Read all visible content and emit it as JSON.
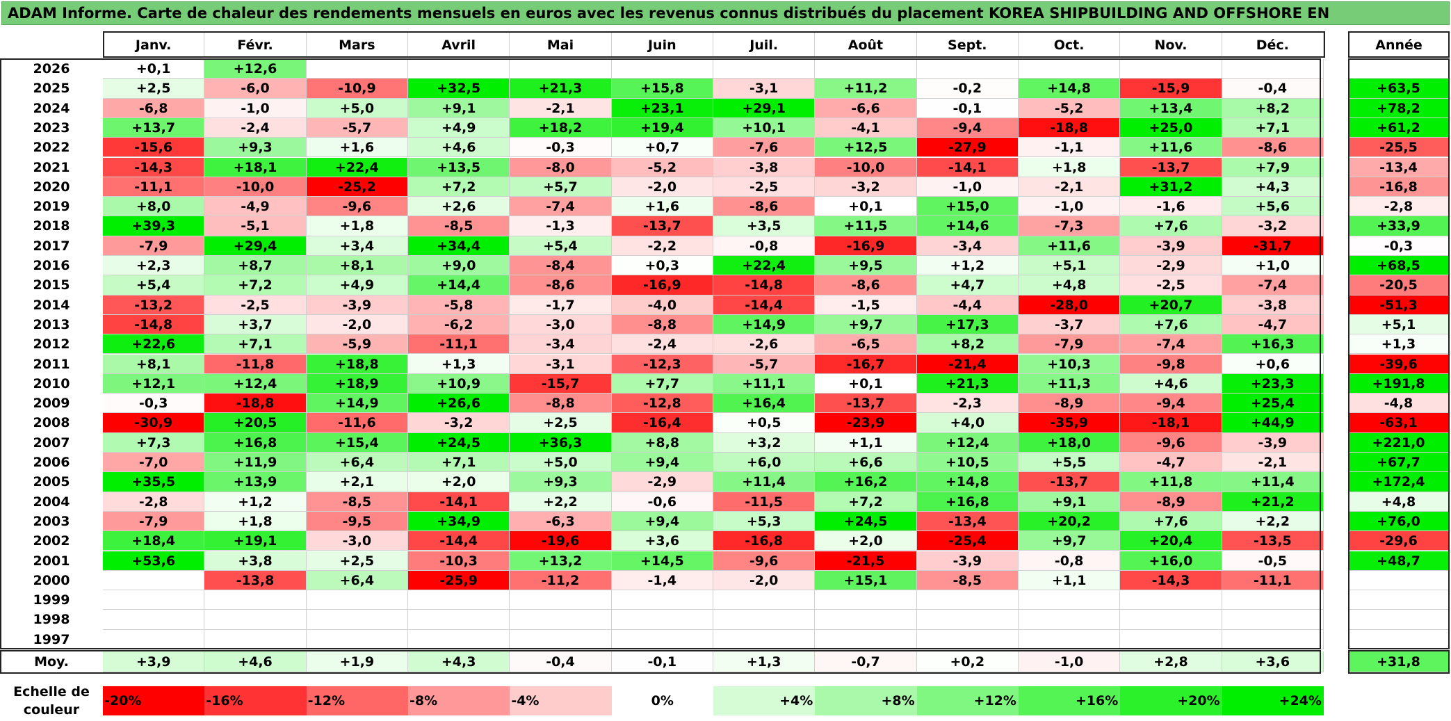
{
  "title": "ADAM Informe. Carte de chaleur des rendements mensuels en euros avec les revenus connus distribués du placement KOREA SHIPBUILDING AND OFFSHORE EN",
  "months": [
    "Janv.",
    "Févr.",
    "Mars",
    "Avril",
    "Mai",
    "Juin",
    "Juil.",
    "Août",
    "Sept.",
    "Oct.",
    "Nov.",
    "Déc."
  ],
  "year_header": "Année",
  "avg_label": "Moy.",
  "scale_label": "Echelle de couleur",
  "colors": {
    "positive": "#00ee00",
    "negative": "#ff0000",
    "neutral": "#ffffff"
  },
  "chart_data": {
    "type": "heatmap",
    "title": "ADAM Informe. Carte de chaleur des rendements mensuels en euros avec les revenus connus distribués du placement KOREA SHIPBUILDING AND OFFSHORE EN",
    "columns": [
      "Janv.",
      "Févr.",
      "Mars",
      "Avril",
      "Mai",
      "Juin",
      "Juil.",
      "Août",
      "Sept.",
      "Oct.",
      "Nov.",
      "Déc.",
      "Année"
    ],
    "rows": [
      {
        "year": "2026",
        "values": [
          "+0,1",
          "+12,6",
          "",
          "",
          "",
          "",
          "",
          "",
          "",
          "",
          "",
          "",
          ""
        ]
      },
      {
        "year": "2025",
        "values": [
          "+2,5",
          "-6,0",
          "-10,9",
          "+32,5",
          "+21,3",
          "+15,8",
          "-3,1",
          "+11,2",
          "-0,2",
          "+14,8",
          "-15,9",
          "-0,4",
          "+63,5"
        ]
      },
      {
        "year": "2024",
        "values": [
          "-6,8",
          "-1,0",
          "+5,0",
          "+9,1",
          "-2,1",
          "+23,1",
          "+29,1",
          "-6,6",
          "-0,1",
          "-5,2",
          "+13,4",
          "+8,2",
          "+78,2"
        ]
      },
      {
        "year": "2023",
        "values": [
          "+13,7",
          "-2,4",
          "-5,7",
          "+4,9",
          "+18,2",
          "+19,4",
          "+10,1",
          "-4,1",
          "-9,4",
          "-18,8",
          "+25,0",
          "+7,1",
          "+61,2"
        ]
      },
      {
        "year": "2022",
        "values": [
          "-15,6",
          "+9,3",
          "+1,6",
          "+4,6",
          "-0,3",
          "+0,7",
          "-7,6",
          "+12,5",
          "-27,9",
          "-1,1",
          "+11,6",
          "-8,6",
          "-25,5"
        ]
      },
      {
        "year": "2021",
        "values": [
          "-14,3",
          "+18,1",
          "+22,4",
          "+13,5",
          "-8,0",
          "-5,2",
          "-3,8",
          "-10,0",
          "-14,1",
          "+1,8",
          "-13,7",
          "+7,9",
          "-13,4"
        ]
      },
      {
        "year": "2020",
        "values": [
          "-11,1",
          "-10,0",
          "-25,2",
          "+7,2",
          "+5,7",
          "-2,0",
          "-2,5",
          "-3,2",
          "-1,0",
          "-2,1",
          "+31,2",
          "+4,3",
          "-16,8"
        ]
      },
      {
        "year": "2019",
        "values": [
          "+8,0",
          "-4,9",
          "-9,6",
          "+2,6",
          "-7,4",
          "+1,6",
          "-8,6",
          "+0,1",
          "+15,0",
          "-1,0",
          "-1,6",
          "+5,6",
          "-2,8"
        ]
      },
      {
        "year": "2018",
        "values": [
          "+39,3",
          "-5,1",
          "+1,8",
          "-8,5",
          "-1,3",
          "-13,7",
          "+3,5",
          "+11,5",
          "+14,6",
          "-7,3",
          "+7,6",
          "-3,2",
          "+33,9"
        ]
      },
      {
        "year": "2017",
        "values": [
          "-7,9",
          "+29,4",
          "+3,4",
          "+34,4",
          "+5,4",
          "-2,2",
          "-0,8",
          "-16,9",
          "-3,4",
          "+11,6",
          "-3,9",
          "-31,7",
          "-0,3"
        ]
      },
      {
        "year": "2016",
        "values": [
          "+2,3",
          "+8,7",
          "+8,1",
          "+9,0",
          "-8,4",
          "+0,3",
          "+22,4",
          "+9,5",
          "+1,2",
          "+5,1",
          "-2,9",
          "+1,0",
          "+68,5"
        ]
      },
      {
        "year": "2015",
        "values": [
          "+5,4",
          "+7,2",
          "+4,9",
          "+14,4",
          "-8,6",
          "-16,9",
          "-14,8",
          "-8,6",
          "+4,7",
          "+4,8",
          "-2,5",
          "-7,4",
          "-20,5"
        ]
      },
      {
        "year": "2014",
        "values": [
          "-13,2",
          "-2,5",
          "-3,9",
          "-5,8",
          "-1,7",
          "-4,0",
          "-14,4",
          "-1,5",
          "-4,4",
          "-28,0",
          "+20,7",
          "-3,8",
          "-51,3"
        ]
      },
      {
        "year": "2013",
        "values": [
          "-14,8",
          "+3,7",
          "-2,0",
          "-6,2",
          "-3,0",
          "-8,8",
          "+14,9",
          "+9,7",
          "+17,3",
          "-3,7",
          "+7,6",
          "-4,7",
          "+5,1"
        ]
      },
      {
        "year": "2012",
        "values": [
          "+22,6",
          "+7,1",
          "-5,9",
          "-11,1",
          "-3,4",
          "-2,4",
          "-2,6",
          "-6,5",
          "+8,2",
          "-7,9",
          "-7,4",
          "+16,3",
          "+1,3"
        ]
      },
      {
        "year": "2011",
        "values": [
          "+8,1",
          "-11,8",
          "+18,8",
          "+1,3",
          "-3,1",
          "-12,3",
          "-5,7",
          "-16,7",
          "-21,4",
          "+10,3",
          "-9,8",
          "+0,6",
          "-39,6"
        ]
      },
      {
        "year": "2010",
        "values": [
          "+12,1",
          "+12,4",
          "+18,9",
          "+10,9",
          "-15,7",
          "+7,7",
          "+11,1",
          "+0,1",
          "+21,3",
          "+11,3",
          "+4,6",
          "+23,3",
          "+191,8"
        ]
      },
      {
        "year": "2009",
        "values": [
          "-0,3",
          "-18,8",
          "+14,9",
          "+26,6",
          "-8,8",
          "-12,8",
          "+16,4",
          "-13,7",
          "-2,3",
          "-8,9",
          "-9,4",
          "+25,4",
          "-4,8"
        ]
      },
      {
        "year": "2008",
        "values": [
          "-30,9",
          "+20,5",
          "-11,6",
          "-3,2",
          "+2,5",
          "-16,4",
          "+0,5",
          "-23,9",
          "+4,0",
          "-35,9",
          "-18,1",
          "+44,9",
          "-63,1"
        ]
      },
      {
        "year": "2007",
        "values": [
          "+7,3",
          "+16,8",
          "+15,4",
          "+24,5",
          "+36,3",
          "+8,8",
          "+3,2",
          "+1,1",
          "+12,4",
          "+18,0",
          "-9,6",
          "-3,9",
          "+221,0"
        ]
      },
      {
        "year": "2006",
        "values": [
          "-7,0",
          "+11,9",
          "+6,4",
          "+7,1",
          "+5,0",
          "+9,4",
          "+6,0",
          "+6,6",
          "+10,5",
          "+5,5",
          "-4,7",
          "-2,1",
          "+67,7"
        ]
      },
      {
        "year": "2005",
        "values": [
          "+35,5",
          "+13,9",
          "+2,1",
          "+2,0",
          "+9,3",
          "-2,9",
          "+11,4",
          "+16,2",
          "+14,8",
          "-13,7",
          "+11,8",
          "+11,4",
          "+172,4"
        ]
      },
      {
        "year": "2004",
        "values": [
          "-2,8",
          "+1,2",
          "-8,5",
          "-14,1",
          "+2,2",
          "-0,6",
          "-11,5",
          "+7,2",
          "+16,8",
          "+9,1",
          "-8,9",
          "+21,2",
          "+4,8"
        ]
      },
      {
        "year": "2003",
        "values": [
          "-7,9",
          "+1,8",
          "-9,5",
          "+34,9",
          "-6,3",
          "+9,4",
          "+5,3",
          "+24,5",
          "-13,4",
          "+20,2",
          "+7,6",
          "+2,2",
          "+76,0"
        ]
      },
      {
        "year": "2002",
        "values": [
          "+18,4",
          "+19,1",
          "-3,0",
          "-14,4",
          "-19,6",
          "+3,6",
          "-16,8",
          "+2,0",
          "-25,4",
          "+9,7",
          "+20,4",
          "-13,5",
          "-29,6"
        ]
      },
      {
        "year": "2001",
        "values": [
          "+53,6",
          "+3,8",
          "+2,5",
          "-10,3",
          "+13,2",
          "+14,5",
          "-9,6",
          "-21,5",
          "-3,9",
          "-0,8",
          "+16,0",
          "-0,5",
          "+48,7"
        ]
      },
      {
        "year": "2000",
        "values": [
          "",
          "-13,8",
          "+6,4",
          "-25,9",
          "-11,2",
          "-1,4",
          "-2,0",
          "+15,1",
          "-8,5",
          "+1,1",
          "-14,3",
          "-11,1",
          ""
        ]
      },
      {
        "year": "1999",
        "values": [
          "",
          "",
          "",
          "",
          "",
          "",
          "",
          "",
          "",
          "",
          "",
          "",
          ""
        ]
      },
      {
        "year": "1998",
        "values": [
          "",
          "",
          "",
          "",
          "",
          "",
          "",
          "",
          "",
          "",
          "",
          "",
          ""
        ]
      },
      {
        "year": "1997",
        "values": [
          "",
          "",
          "",
          "",
          "",
          "",
          "",
          "",
          "",
          "",
          "",
          "",
          ""
        ]
      }
    ],
    "average": {
      "label": "Moy.",
      "values": [
        "+3,9",
        "+4,6",
        "+1,9",
        "+4,3",
        "-0,4",
        "-0,1",
        "+1,3",
        "-0,7",
        "+0,2",
        "-1,0",
        "+2,8",
        "+3,6",
        "+31,8"
      ]
    },
    "color_scale": {
      "label": "Echelle de couleur",
      "stops": [
        {
          "label": "-20%",
          "value": -20
        },
        {
          "label": "-16%",
          "value": -16
        },
        {
          "label": "-12%",
          "value": -12
        },
        {
          "label": "-8%",
          "value": -8
        },
        {
          "label": "-4%",
          "value": -4
        },
        {
          "label": "0%",
          "value": 0
        },
        {
          "label": "+4%",
          "value": 4
        },
        {
          "label": "+8%",
          "value": 8
        },
        {
          "label": "+12%",
          "value": 12
        },
        {
          "label": "+16%",
          "value": 16
        },
        {
          "label": "+20%",
          "value": 20
        },
        {
          "label": "+24%",
          "value": 24
        }
      ]
    }
  }
}
